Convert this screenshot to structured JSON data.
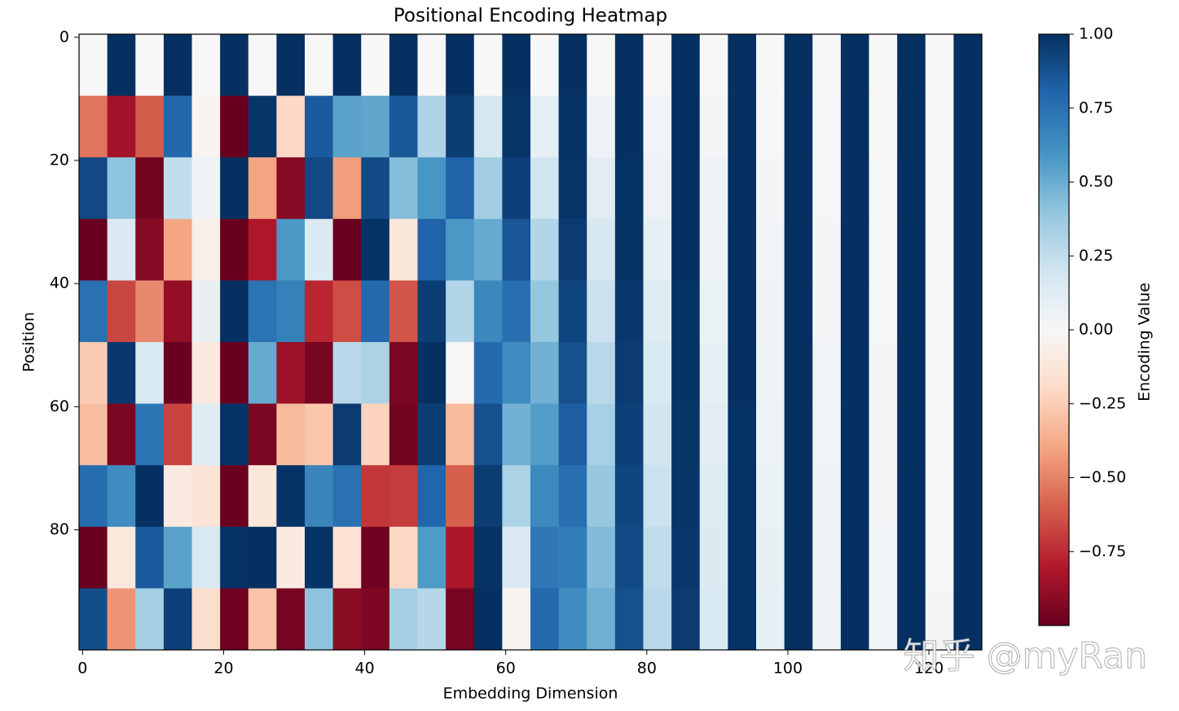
{
  "chart_data": {
    "type": "heatmap",
    "title": "Positional Encoding Heatmap",
    "x_label": "Embedding Dimension",
    "y_label": "Position",
    "colorbar_label": "Encoding Value",
    "watermark": "知乎 @myRan",
    "x": [
      0,
      4,
      8,
      12,
      16,
      20,
      24,
      28,
      32,
      36,
      40,
      44,
      48,
      52,
      56,
      60,
      64,
      68,
      72,
      76,
      80,
      84,
      88,
      92,
      96,
      100,
      104,
      108,
      112,
      116,
      120,
      124
    ],
    "y": [
      0,
      10,
      20,
      30,
      40,
      50,
      60,
      70,
      80,
      90
    ],
    "z": [
      [
        0,
        1,
        0,
        1,
        0,
        1,
        0,
        1,
        0,
        1,
        0,
        1,
        0,
        1,
        0,
        1,
        0,
        1,
        0,
        1,
        0,
        1,
        0,
        1,
        0,
        1,
        0,
        1,
        0,
        1,
        0,
        1
      ],
      [
        -0.54,
        -0.84,
        -0.61,
        0.79,
        -0.02,
        -1.0,
        0.98,
        -0.21,
        0.84,
        0.54,
        0.53,
        0.85,
        0.31,
        0.95,
        0.18,
        0.98,
        0.1,
        0.99,
        0.06,
        1.0,
        0.03,
        1.0,
        0.02,
        1.0,
        0.01,
        1,
        0.01,
        1,
        0,
        1,
        0,
        1
      ],
      [
        0.91,
        0.41,
        -0.97,
        0.25,
        0.04,
        1.0,
        -0.4,
        -0.92,
        0.91,
        -0.42,
        0.9,
        0.43,
        0.59,
        0.81,
        0.35,
        0.94,
        0.2,
        0.98,
        0.11,
        0.99,
        0.06,
        1.0,
        0.04,
        1.0,
        0.02,
        1,
        0.01,
        1,
        0.01,
        1,
        0,
        1
      ],
      [
        -0.99,
        0.15,
        -0.92,
        -0.4,
        -0.06,
        -1.0,
        -0.81,
        0.58,
        0.14,
        -0.99,
        0.99,
        -0.12,
        0.81,
        0.58,
        0.51,
        0.86,
        0.3,
        0.96,
        0.17,
        0.99,
        0.09,
        1.0,
        0.05,
        1.0,
        0.03,
        1,
        0.02,
        1,
        0.01,
        1,
        0.01,
        1
      ],
      [
        0.75,
        -0.67,
        -0.48,
        -0.88,
        0.08,
        1.0,
        0.74,
        0.68,
        -0.76,
        -0.65,
        0.78,
        -0.63,
        0.95,
        0.3,
        0.65,
        0.76,
        0.39,
        0.92,
        0.22,
        0.97,
        0.13,
        0.99,
        0.07,
        1.0,
        0.04,
        1,
        0.02,
        1,
        0.01,
        1,
        0.01,
        1
      ],
      [
        -0.26,
        0.97,
        0.16,
        -0.99,
        -0.1,
        -1.0,
        0.51,
        -0.86,
        -0.96,
        0.28,
        0.32,
        -0.95,
        1.0,
        -0.01,
        0.78,
        0.63,
        0.48,
        0.88,
        0.28,
        0.96,
        0.16,
        0.99,
        0.09,
        1.0,
        0.05,
        1,
        0.03,
        1,
        0.02,
        1,
        0.01,
        1
      ],
      [
        -0.31,
        -0.95,
        0.73,
        -0.68,
        0.12,
        0.99,
        -0.95,
        -0.32,
        -0.28,
        0.96,
        -0.23,
        -0.97,
        0.95,
        -0.32,
        0.88,
        0.48,
        0.56,
        0.83,
        0.33,
        0.94,
        0.19,
        0.98,
        0.11,
        0.99,
        0.06,
        1,
        0.03,
        1,
        0.02,
        1,
        0.01,
        1
      ],
      [
        0.77,
        0.63,
        1.0,
        -0.09,
        -0.14,
        -0.99,
        -0.12,
        0.99,
        0.66,
        0.75,
        -0.71,
        -0.7,
        0.8,
        -0.6,
        0.95,
        0.32,
        0.64,
        0.76,
        0.38,
        0.92,
        0.22,
        0.98,
        0.12,
        0.99,
        0.07,
        1,
        0.04,
        1,
        0.02,
        1,
        0.01,
        1
      ],
      [
        -0.99,
        -0.11,
        0.84,
        0.54,
        0.16,
        0.99,
        1.0,
        -0.09,
        0.99,
        -0.15,
        -0.98,
        -0.21,
        0.57,
        -0.82,
        0.99,
        0.15,
        0.72,
        0.7,
        0.44,
        0.9,
        0.25,
        0.97,
        0.14,
        0.99,
        0.08,
        1,
        0.04,
        1,
        0.03,
        1,
        0.01,
        1
      ],
      [
        0.89,
        -0.45,
        0.34,
        0.94,
        -0.18,
        -0.98,
        -0.29,
        -0.96,
        0.41,
        -0.91,
        -0.94,
        0.34,
        0.29,
        -0.96,
        1.0,
        -0.03,
        0.78,
        0.62,
        0.49,
        0.88,
        0.28,
        0.96,
        0.16,
        0.99,
        0.09,
        1,
        0.05,
        1,
        0.03,
        1,
        0.02,
        1
      ]
    ],
    "xlim": [
      -0.5,
      127.5
    ],
    "ylim": [
      99.5,
      -0.5
    ],
    "xticks": [
      0,
      20,
      40,
      60,
      80,
      100,
      120
    ],
    "yticks": [
      0,
      20,
      40,
      60,
      80
    ],
    "clim": [
      -1,
      1
    ],
    "cticks": [
      {
        "value": -0.75,
        "label": "−0.75"
      },
      {
        "value": -0.5,
        "label": "−0.50"
      },
      {
        "value": -0.25,
        "label": "−0.25"
      },
      {
        "value": 0,
        "label": "0.00"
      },
      {
        "value": 0.25,
        "label": "0.25"
      },
      {
        "value": 0.5,
        "label": "0.50"
      },
      {
        "value": 0.75,
        "label": "0.75"
      },
      {
        "value": 1,
        "label": "1.00"
      }
    ],
    "colormap": [
      "#67001f",
      "#b2182b",
      "#d6604d",
      "#f4a582",
      "#fddbc7",
      "#f7f7f7",
      "#d1e5f0",
      "#92c5de",
      "#4393c3",
      "#2166ac",
      "#053061"
    ]
  }
}
